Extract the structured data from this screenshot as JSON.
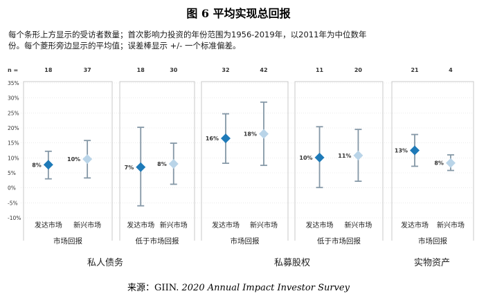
{
  "figure": {
    "title": "图 6 平均实现总回报",
    "description_line1": "每个条形上方显示的受访者数量；首次影响力投资的年份范围为1956-2019年，以2011年为中位数年",
    "description_line2": "份。每个菱形旁边显示的平均值；误差棒显示 +/- 一个标准偏差。",
    "source_prefix": "来源：GIIN. ",
    "source_title": "2020 Annual Impact Investor Survey"
  },
  "colors": {
    "developed": "#1e7ab8",
    "emerging": "#b9d4e8",
    "error_bar": "#8497a6",
    "panel_frame": "#c9c9c9",
    "grid": "#dddddd"
  },
  "chart_data": {
    "type": "scatter",
    "n_label": "n =",
    "ylim": [
      -10,
      35
    ],
    "yticks": [
      "35%",
      "30%",
      "25%",
      "20%",
      "15%",
      "10%",
      "5%",
      "0%",
      "-5%",
      "-10%"
    ],
    "grid": true,
    "panels": [
      {
        "subgroup": "市场回报",
        "points": [
          {
            "category": "发达市场",
            "n": "18",
            "mean": 7.7,
            "low": 3.0,
            "high": 12.2,
            "label": "8%",
            "market": "developed"
          },
          {
            "category": "新兴市场",
            "n": "37",
            "mean": 9.6,
            "low": 3.3,
            "high": 15.8,
            "label": "10%",
            "market": "emerging"
          }
        ]
      },
      {
        "subgroup": "低于市场回报",
        "points": [
          {
            "category": "发达市场",
            "n": "18",
            "mean": 6.9,
            "low": -6.0,
            "high": 20.2,
            "label": "7%",
            "market": "developed"
          },
          {
            "category": "新兴市场",
            "n": "30",
            "mean": 8.0,
            "low": 1.2,
            "high": 14.9,
            "label": "8%",
            "market": "emerging"
          }
        ]
      },
      {
        "subgroup": "市场回报",
        "points": [
          {
            "category": "发达市场",
            "n": "32",
            "mean": 16.5,
            "low": 8.2,
            "high": 24.7,
            "label": "16%",
            "market": "developed"
          },
          {
            "category": "新兴市场",
            "n": "42",
            "mean": 18.0,
            "low": 7.5,
            "high": 28.6,
            "label": "18%",
            "market": "emerging"
          }
        ]
      },
      {
        "subgroup": "低于市场回报",
        "points": [
          {
            "category": "发达市场",
            "n": "11",
            "mean": 10.1,
            "low": 0.1,
            "high": 20.4,
            "label": "10%",
            "market": "developed"
          },
          {
            "category": "新兴市场",
            "n": "20",
            "mean": 10.8,
            "low": 2.2,
            "high": 19.5,
            "label": "11%",
            "market": "emerging"
          }
        ]
      },
      {
        "subgroup": "市场回报",
        "points": [
          {
            "category": "发达市场",
            "n": "21",
            "mean": 12.5,
            "low": 7.2,
            "high": 17.8,
            "label": "13%",
            "market": "developed"
          },
          {
            "category": "新兴市场",
            "n": "4",
            "mean": 8.3,
            "low": 5.8,
            "high": 11.0,
            "label": "8%",
            "market": "emerging"
          }
        ]
      }
    ],
    "groups": [
      {
        "name": "私人债务"
      },
      {
        "name": "私募股权"
      },
      {
        "name": "实物资产"
      }
    ]
  }
}
